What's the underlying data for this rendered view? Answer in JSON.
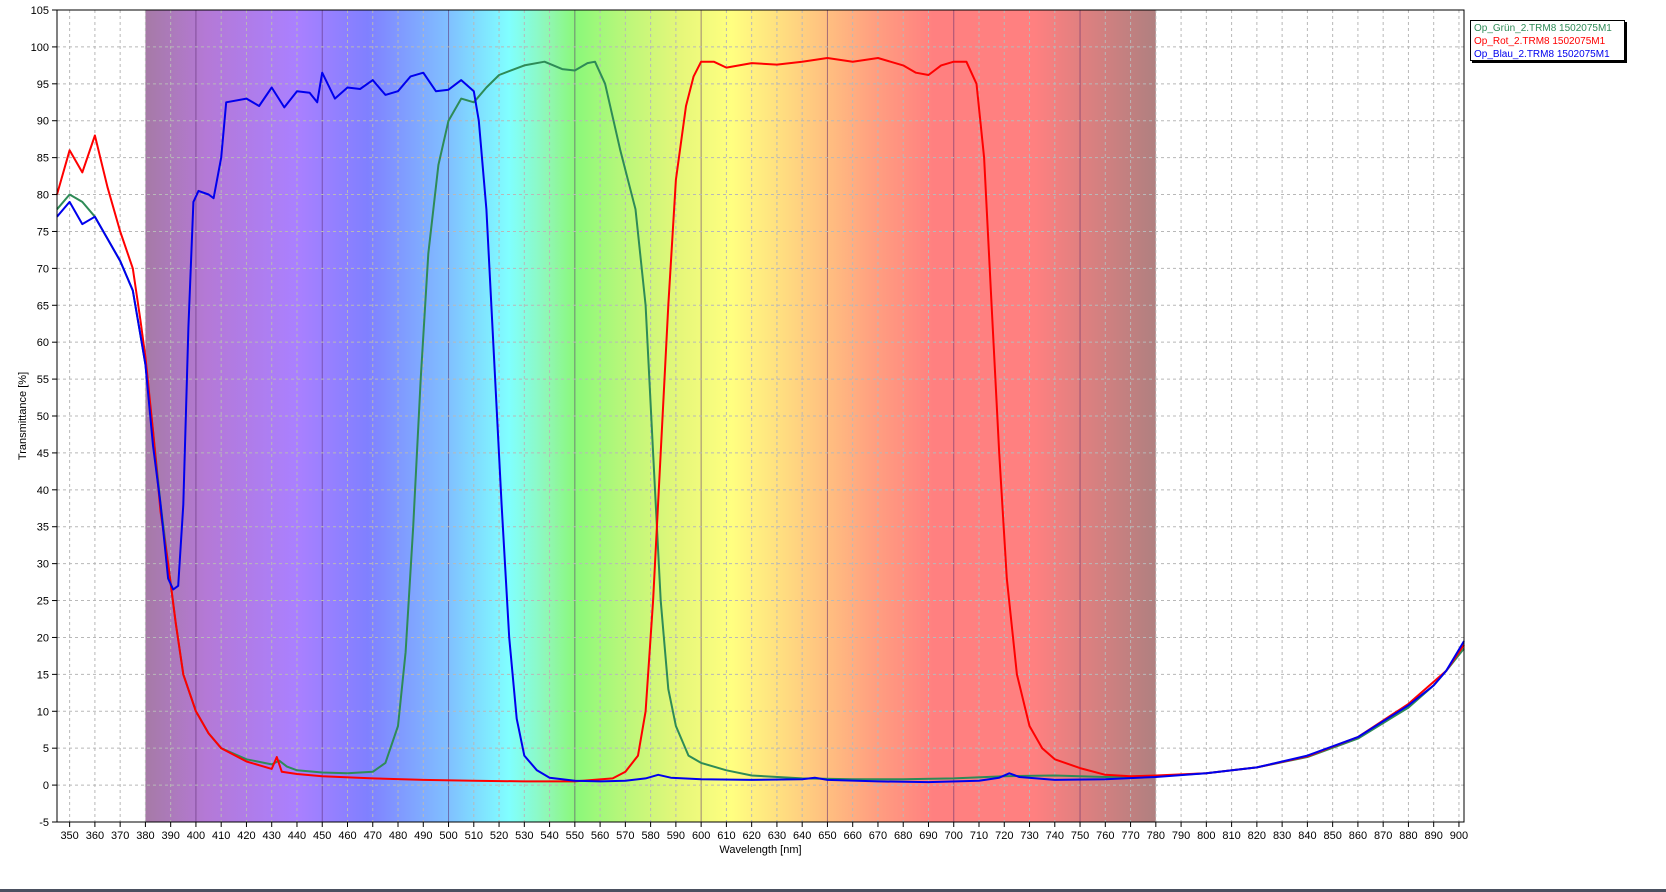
{
  "chart_data": {
    "type": "line",
    "title": "",
    "xlabel": "Wavelength [nm]",
    "ylabel": "Transmittance [%]",
    "xlim": [
      345,
      902
    ],
    "ylim": [
      -5,
      105
    ],
    "x_ticks": [
      350,
      360,
      370,
      380,
      390,
      400,
      410,
      420,
      430,
      440,
      450,
      460,
      470,
      480,
      490,
      500,
      510,
      520,
      530,
      540,
      550,
      560,
      570,
      580,
      590,
      600,
      610,
      620,
      630,
      640,
      650,
      660,
      670,
      680,
      690,
      700,
      710,
      720,
      730,
      740,
      750,
      760,
      770,
      780,
      790,
      800,
      810,
      820,
      830,
      840,
      850,
      860,
      870,
      880,
      890,
      900
    ],
    "y_ticks": [
      -5,
      0,
      5,
      10,
      15,
      20,
      25,
      30,
      35,
      40,
      45,
      50,
      55,
      60,
      65,
      70,
      75,
      80,
      85,
      90,
      95,
      100,
      105
    ],
    "grid": true,
    "legend_position": "top-right",
    "visible_spectrum": [
      380,
      780
    ],
    "series": [
      {
        "name": "Op_Grün_2.TRM8 1502075M1",
        "color": "#2e8b57",
        "points": [
          [
            345,
            78
          ],
          [
            350,
            80
          ],
          [
            355,
            79
          ],
          [
            360,
            77
          ],
          [
            365,
            74
          ],
          [
            370,
            71
          ],
          [
            375,
            67
          ],
          [
            378,
            61
          ],
          [
            380,
            57
          ],
          [
            383,
            48
          ],
          [
            386,
            38
          ],
          [
            389,
            30
          ],
          [
            392,
            22
          ],
          [
            395,
            15
          ],
          [
            400,
            10
          ],
          [
            405,
            7
          ],
          [
            410,
            5
          ],
          [
            420,
            3.5
          ],
          [
            430,
            2.8
          ],
          [
            433,
            3.3
          ],
          [
            436,
            2.5
          ],
          [
            440,
            2
          ],
          [
            450,
            1.7
          ],
          [
            460,
            1.6
          ],
          [
            470,
            1.8
          ],
          [
            475,
            3
          ],
          [
            480,
            8
          ],
          [
            483,
            18
          ],
          [
            486,
            35
          ],
          [
            489,
            55
          ],
          [
            492,
            72
          ],
          [
            496,
            84
          ],
          [
            500,
            90
          ],
          [
            505,
            93
          ],
          [
            510,
            92.5
          ],
          [
            515,
            94.5
          ],
          [
            520,
            96.2
          ],
          [
            530,
            97.5
          ],
          [
            538,
            98
          ],
          [
            545,
            97
          ],
          [
            550,
            96.8
          ],
          [
            555,
            97.8
          ],
          [
            558,
            98
          ],
          [
            562,
            95
          ],
          [
            568,
            86
          ],
          [
            574,
            78
          ],
          [
            578,
            65
          ],
          [
            581,
            45
          ],
          [
            584,
            25
          ],
          [
            587,
            13
          ],
          [
            590,
            8
          ],
          [
            595,
            4
          ],
          [
            600,
            3
          ],
          [
            610,
            2
          ],
          [
            620,
            1.3
          ],
          [
            640,
            0.9
          ],
          [
            660,
            0.8
          ],
          [
            680,
            0.8
          ],
          [
            700,
            0.9
          ],
          [
            720,
            1.2
          ],
          [
            740,
            1.3
          ],
          [
            760,
            1.1
          ],
          [
            780,
            1.2
          ],
          [
            800,
            1.6
          ],
          [
            820,
            2.4
          ],
          [
            840,
            3.8
          ],
          [
            860,
            6.3
          ],
          [
            880,
            10.5
          ],
          [
            890,
            13.5
          ],
          [
            895,
            15.5
          ],
          [
            902,
            18.5
          ]
        ]
      },
      {
        "name": "Op_Rot_2.TRM8 1502075M1",
        "color": "#ff0000",
        "points": [
          [
            345,
            80
          ],
          [
            350,
            86
          ],
          [
            355,
            83
          ],
          [
            360,
            88
          ],
          [
            365,
            81
          ],
          [
            370,
            75
          ],
          [
            375,
            70
          ],
          [
            378,
            63
          ],
          [
            380,
            58
          ],
          [
            383,
            48
          ],
          [
            386,
            37
          ],
          [
            389,
            30
          ],
          [
            392,
            22
          ],
          [
            395,
            15
          ],
          [
            400,
            10
          ],
          [
            405,
            7
          ],
          [
            410,
            5
          ],
          [
            420,
            3.2
          ],
          [
            430,
            2.2
          ],
          [
            432,
            3.8
          ],
          [
            434,
            1.8
          ],
          [
            440,
            1.5
          ],
          [
            450,
            1.2
          ],
          [
            470,
            0.9
          ],
          [
            490,
            0.7
          ],
          [
            510,
            0.6
          ],
          [
            530,
            0.5
          ],
          [
            550,
            0.5
          ],
          [
            565,
            0.9
          ],
          [
            570,
            1.8
          ],
          [
            575,
            4
          ],
          [
            578,
            10
          ],
          [
            581,
            25
          ],
          [
            584,
            45
          ],
          [
            587,
            65
          ],
          [
            590,
            82
          ],
          [
            594,
            92
          ],
          [
            597,
            96
          ],
          [
            600,
            98
          ],
          [
            605,
            98
          ],
          [
            610,
            97.2
          ],
          [
            620,
            97.8
          ],
          [
            630,
            97.6
          ],
          [
            640,
            98
          ],
          [
            650,
            98.5
          ],
          [
            660,
            98
          ],
          [
            670,
            98.5
          ],
          [
            680,
            97.5
          ],
          [
            685,
            96.5
          ],
          [
            690,
            96.2
          ],
          [
            695,
            97.5
          ],
          [
            700,
            98
          ],
          [
            705,
            98
          ],
          [
            709,
            95
          ],
          [
            712,
            85
          ],
          [
            715,
            65
          ],
          [
            718,
            45
          ],
          [
            721,
            28
          ],
          [
            725,
            15
          ],
          [
            730,
            8
          ],
          [
            735,
            5
          ],
          [
            740,
            3.5
          ],
          [
            750,
            2.3
          ],
          [
            760,
            1.4
          ],
          [
            770,
            1.2
          ],
          [
            780,
            1.3
          ],
          [
            800,
            1.6
          ],
          [
            820,
            2.4
          ],
          [
            840,
            3.9
          ],
          [
            860,
            6.5
          ],
          [
            880,
            11
          ],
          [
            890,
            14
          ],
          [
            895,
            15.5
          ],
          [
            902,
            19
          ]
        ]
      },
      {
        "name": "Op_Blau_2.TRM8 1502075M1",
        "color": "#0000ee",
        "points": [
          [
            345,
            77
          ],
          [
            350,
            79
          ],
          [
            355,
            76
          ],
          [
            360,
            77
          ],
          [
            365,
            74
          ],
          [
            370,
            71
          ],
          [
            375,
            67
          ],
          [
            378,
            61
          ],
          [
            380,
            57
          ],
          [
            383,
            46
          ],
          [
            386,
            38
          ],
          [
            389,
            28
          ],
          [
            391,
            26.5
          ],
          [
            393,
            27
          ],
          [
            395,
            38
          ],
          [
            397,
            62
          ],
          [
            399,
            79
          ],
          [
            401,
            80.5
          ],
          [
            405,
            80
          ],
          [
            407,
            79.5
          ],
          [
            410,
            85
          ],
          [
            412,
            92.5
          ],
          [
            420,
            93
          ],
          [
            425,
            92
          ],
          [
            430,
            94.5
          ],
          [
            435,
            91.8
          ],
          [
            440,
            94
          ],
          [
            445,
            93.8
          ],
          [
            448,
            92.5
          ],
          [
            450,
            96.5
          ],
          [
            455,
            93
          ],
          [
            460,
            94.5
          ],
          [
            465,
            94.3
          ],
          [
            470,
            95.5
          ],
          [
            475,
            93.5
          ],
          [
            480,
            94
          ],
          [
            485,
            96
          ],
          [
            490,
            96.5
          ],
          [
            495,
            94
          ],
          [
            500,
            94.2
          ],
          [
            505,
            95.5
          ],
          [
            510,
            94
          ],
          [
            512,
            90
          ],
          [
            515,
            78
          ],
          [
            518,
            58
          ],
          [
            521,
            38
          ],
          [
            524,
            20
          ],
          [
            527,
            9
          ],
          [
            530,
            4
          ],
          [
            535,
            2
          ],
          [
            540,
            1
          ],
          [
            550,
            0.6
          ],
          [
            560,
            0.5
          ],
          [
            570,
            0.6
          ],
          [
            578,
            0.9
          ],
          [
            583,
            1.4
          ],
          [
            588,
            1
          ],
          [
            600,
            0.8
          ],
          [
            620,
            0.7
          ],
          [
            640,
            0.8
          ],
          [
            645,
            1
          ],
          [
            650,
            0.7
          ],
          [
            670,
            0.5
          ],
          [
            690,
            0.4
          ],
          [
            710,
            0.6
          ],
          [
            718,
            1
          ],
          [
            722,
            1.6
          ],
          [
            726,
            1.1
          ],
          [
            740,
            0.7
          ],
          [
            760,
            0.8
          ],
          [
            780,
            1.1
          ],
          [
            800,
            1.6
          ],
          [
            820,
            2.4
          ],
          [
            840,
            4
          ],
          [
            860,
            6.5
          ],
          [
            880,
            10.8
          ],
          [
            890,
            13.5
          ],
          [
            895,
            15.5
          ],
          [
            902,
            19.5
          ]
        ]
      }
    ]
  }
}
